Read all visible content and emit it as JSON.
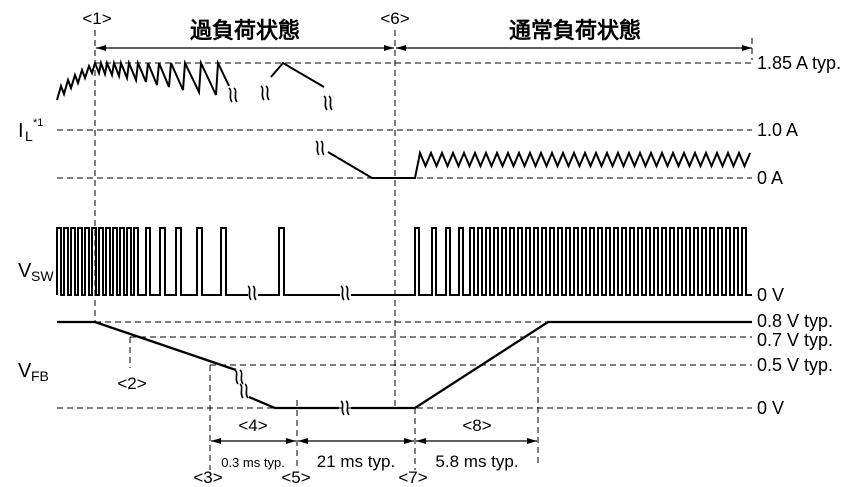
{
  "phases": {
    "marker_1": "<1>",
    "overload_label": "過負荷状態",
    "marker_6": "<6>",
    "normal_label": "通常負荷状態"
  },
  "signals": {
    "il": {
      "symbol": "I",
      "subscript": "L",
      "footnote": "*1"
    },
    "vsw": {
      "symbol": "V",
      "subscript": "SW"
    },
    "vfb": {
      "symbol": "V",
      "subscript": "FB"
    }
  },
  "levels": {
    "il_peak": "1.85 A typ.",
    "il_one": "1.0 A",
    "il_zero": "0 A",
    "vsw_zero": "0 V",
    "vfb_08": "0.8 V typ.",
    "vfb_07": "0.7 V typ.",
    "vfb_05": "0.5 V typ.",
    "vfb_zero": "0 V"
  },
  "markers": {
    "m2": "<2>",
    "m3": "<3>",
    "m4": "<4>",
    "m5": "<5>",
    "m7": "<7>",
    "m8": "<8>"
  },
  "durations": {
    "d4": "0.3 ms typ.",
    "d5_7": "21 ms typ.",
    "d8": "5.8 ms typ."
  },
  "colors": {
    "line": "#000000",
    "background": "#ffffff"
  }
}
